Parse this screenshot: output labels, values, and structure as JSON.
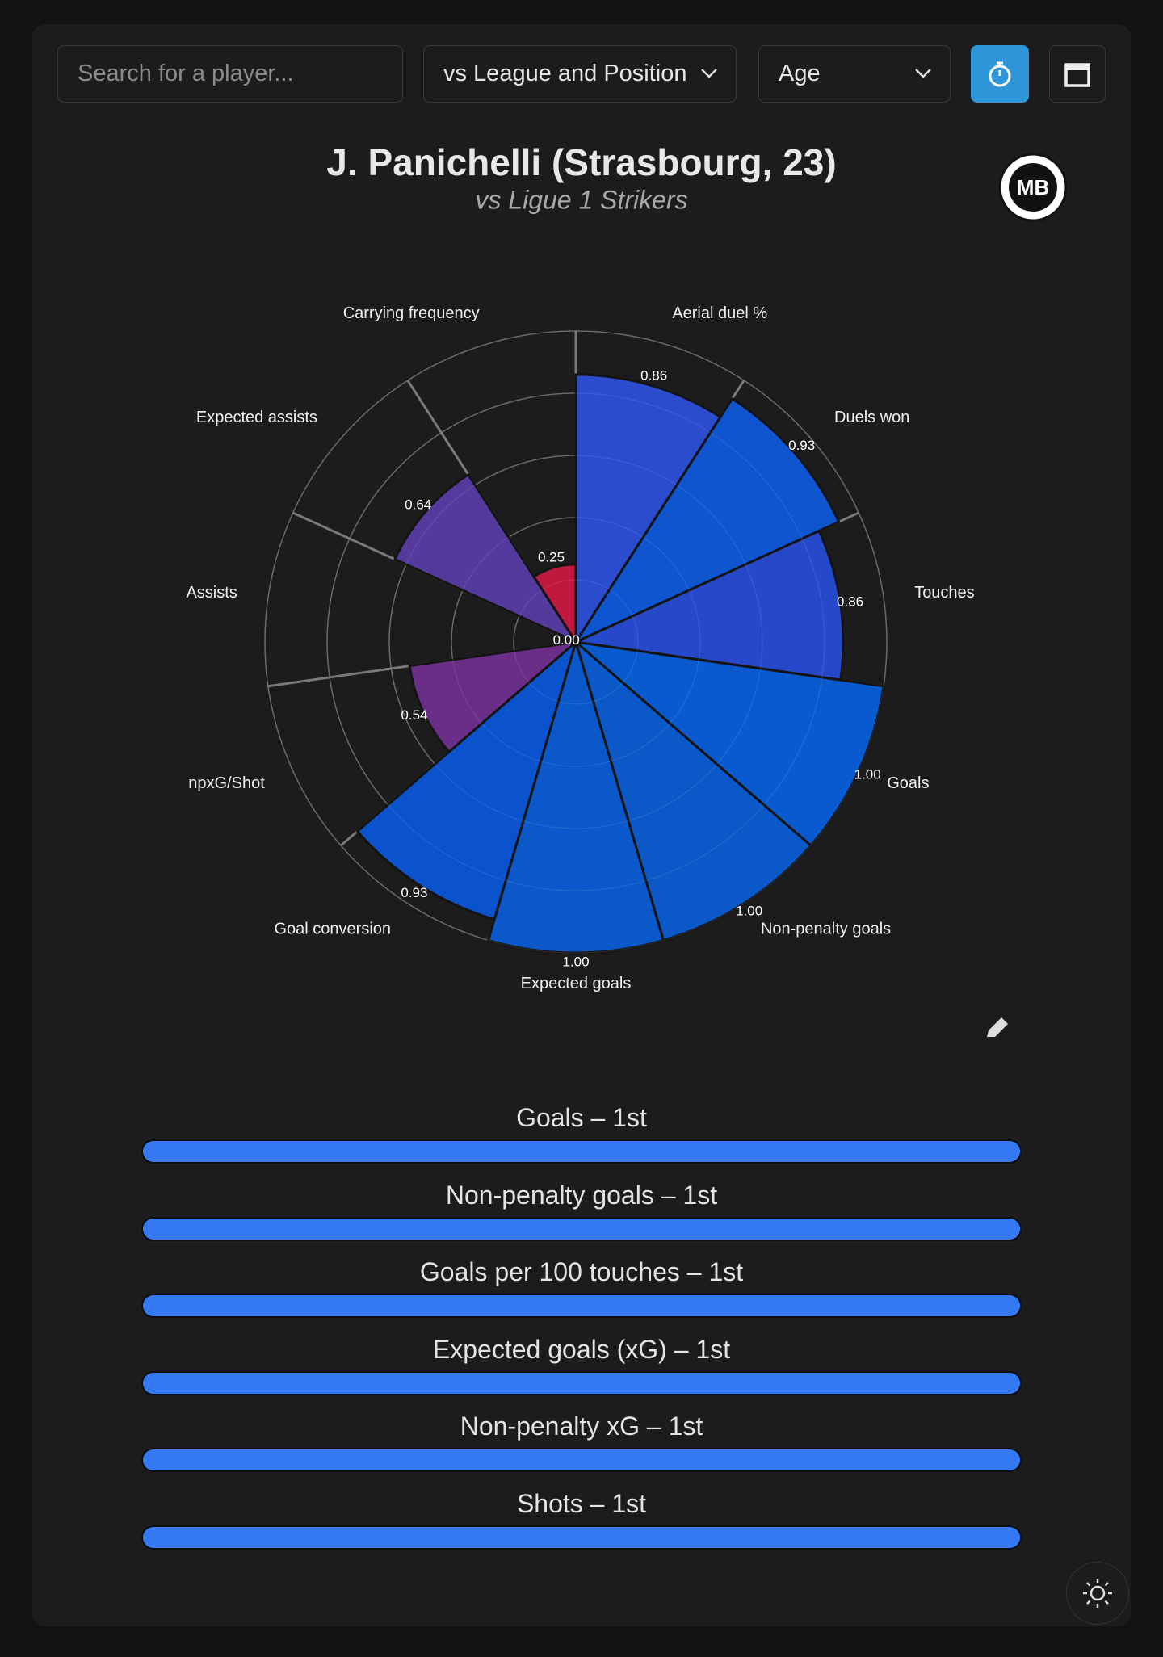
{
  "toolbar": {
    "search_placeholder": "Search for a player...",
    "comparison_filter": "vs League and Position",
    "age_filter": "Age"
  },
  "logo_text": "MB",
  "chart_data": {
    "type": "polar_bar",
    "title": "J. Panichelli (Strasbourg, 23)",
    "subtitle": "vs Ligue 1 Strikers",
    "categories": [
      "Aerial duel %",
      "Duels won",
      "Touches",
      "Goals",
      "Non-penalty goals",
      "Expected goals",
      "Goal conversion",
      "npxG/Shot",
      "Assists",
      "Expected assists",
      "Carrying frequency"
    ],
    "values": [
      0.86,
      0.93,
      0.86,
      1,
      1,
      1,
      0.93,
      0.54,
      0,
      0.64,
      0.25
    ],
    "value_labels": [
      "0.86",
      "0.93",
      "0.86",
      "1.00",
      "1.00",
      "1.00",
      "0.93",
      "0.54",
      "0.00",
      "0.64",
      "0.25"
    ],
    "colors": [
      "#2a4ccd",
      "#0f55cf",
      "#2549c8",
      "#0a5acf",
      "#0b58c9",
      "#0a58c9",
      "#0b52cd",
      "#6a2e88",
      "#5b3496",
      "#533a9c",
      "#c0183f"
    ],
    "rlim": [
      0,
      1
    ],
    "rticks": [
      0.2,
      0.4,
      0.6,
      0.8,
      1
    ],
    "grid": true
  },
  "rank_list": [
    "Goals – 1st",
    "Non-penalty goals – 1st",
    "Goals per 100 touches – 1st",
    "Expected goals (xG) – 1st",
    "Non-penalty xG – 1st",
    "Shots – 1st"
  ]
}
